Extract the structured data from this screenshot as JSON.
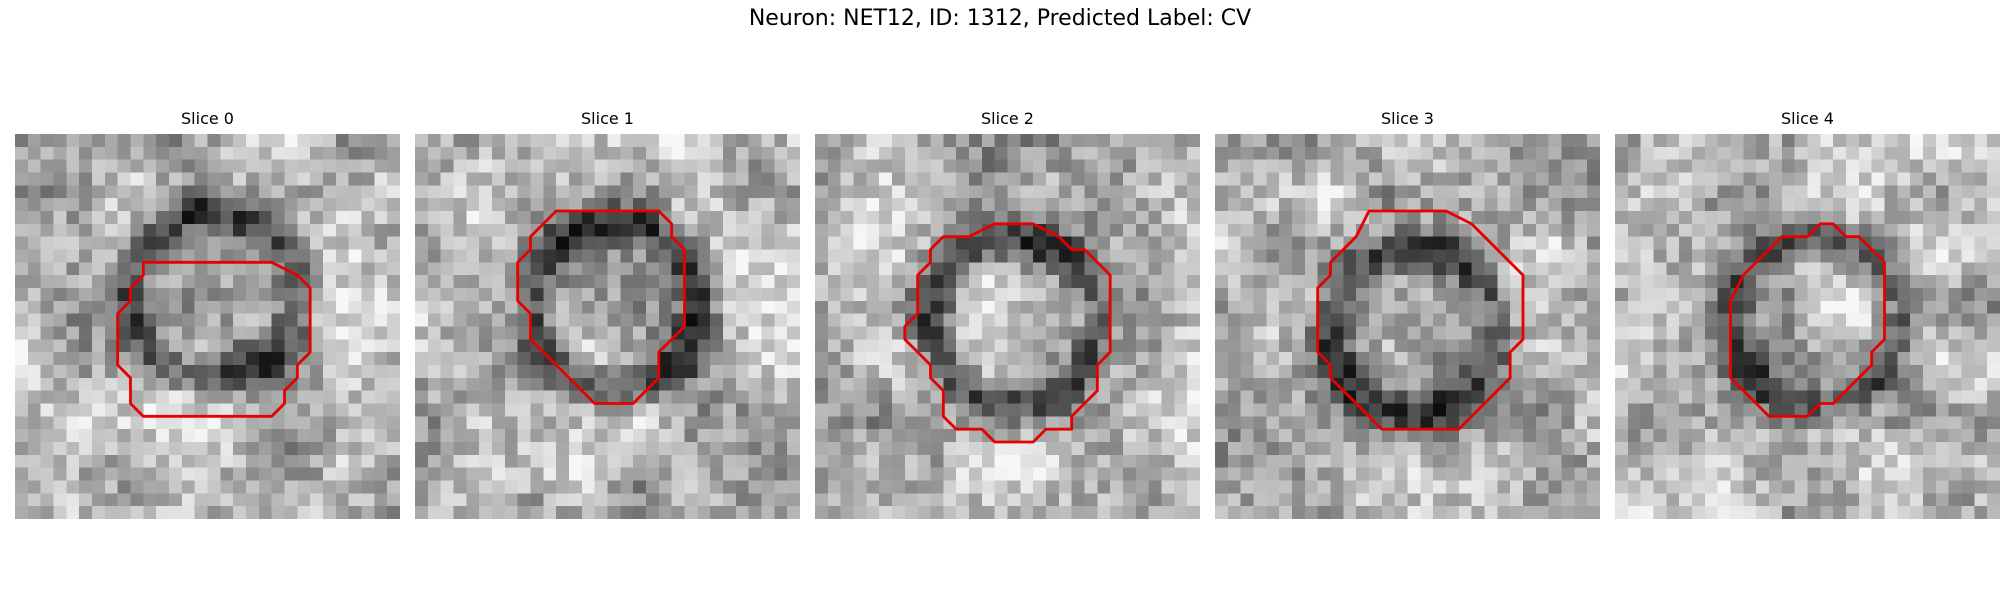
{
  "figure": {
    "title": "Neuron: NET12, ID: 1312, Predicted Label: CV"
  },
  "contour_color": "#e60000",
  "grid_size": 30,
  "slices": [
    {
      "title": "Slice 0",
      "seed": 11,
      "dark_center": [
        15,
        12
      ],
      "contour": [
        [
          10,
          10
        ],
        [
          20,
          10
        ],
        [
          22,
          11
        ],
        [
          23,
          12
        ],
        [
          23,
          17
        ],
        [
          22,
          18
        ],
        [
          22,
          19
        ],
        [
          21,
          20
        ],
        [
          21,
          21
        ],
        [
          20,
          22
        ],
        [
          10,
          22
        ],
        [
          9,
          21
        ],
        [
          9,
          19
        ],
        [
          8,
          18
        ],
        [
          8,
          14
        ],
        [
          9,
          13
        ],
        [
          9,
          12
        ],
        [
          10,
          11
        ]
      ]
    },
    {
      "title": "Slice 1",
      "seed": 23,
      "dark_center": [
        15,
        13
      ],
      "contour": [
        [
          11,
          6
        ],
        [
          19,
          6
        ],
        [
          20,
          7
        ],
        [
          20,
          8
        ],
        [
          21,
          9
        ],
        [
          21,
          15
        ],
        [
          20,
          16
        ],
        [
          19,
          17
        ],
        [
          19,
          19
        ],
        [
          17,
          21
        ],
        [
          14,
          21
        ],
        [
          13,
          20
        ],
        [
          10,
          17
        ],
        [
          9,
          16
        ],
        [
          9,
          14
        ],
        [
          8,
          13
        ],
        [
          8,
          10
        ],
        [
          9,
          9
        ],
        [
          9,
          8
        ],
        [
          10,
          7
        ]
      ]
    },
    {
      "title": "Slice 2",
      "seed": 37,
      "dark_center": [
        15,
        14
      ],
      "contour": [
        [
          10,
          8
        ],
        [
          12,
          8
        ],
        [
          14,
          7
        ],
        [
          17,
          7
        ],
        [
          19,
          8
        ],
        [
          20,
          9
        ],
        [
          21,
          9
        ],
        [
          23,
          11
        ],
        [
          23,
          17
        ],
        [
          22,
          18
        ],
        [
          22,
          20
        ],
        [
          21,
          21
        ],
        [
          20,
          22
        ],
        [
          20,
          23
        ],
        [
          18,
          23
        ],
        [
          17,
          24
        ],
        [
          14,
          24
        ],
        [
          13,
          23
        ],
        [
          11,
          23
        ],
        [
          10,
          22
        ],
        [
          10,
          20
        ],
        [
          9,
          19
        ],
        [
          9,
          18
        ],
        [
          8,
          17
        ],
        [
          7,
          16
        ],
        [
          7,
          15
        ],
        [
          8,
          14
        ],
        [
          8,
          11
        ],
        [
          9,
          10
        ],
        [
          9,
          9
        ]
      ]
    },
    {
      "title": "Slice 3",
      "seed": 53,
      "dark_center": [
        15,
        15
      ],
      "contour": [
        [
          12,
          6
        ],
        [
          18,
          6
        ],
        [
          20,
          7
        ],
        [
          22,
          9
        ],
        [
          23,
          10
        ],
        [
          24,
          11
        ],
        [
          24,
          16
        ],
        [
          23,
          17
        ],
        [
          23,
          19
        ],
        [
          19,
          23
        ],
        [
          13,
          23
        ],
        [
          10,
          20
        ],
        [
          9,
          19
        ],
        [
          9,
          18
        ],
        [
          8,
          17
        ],
        [
          8,
          12
        ],
        [
          9,
          11
        ],
        [
          9,
          10
        ],
        [
          10,
          9
        ],
        [
          11,
          8
        ]
      ]
    },
    {
      "title": "Slice 4",
      "seed": 71,
      "dark_center": [
        15,
        14
      ],
      "contour": [
        [
          13,
          8
        ],
        [
          15,
          8
        ],
        [
          16,
          7
        ],
        [
          17,
          7
        ],
        [
          18,
          8
        ],
        [
          19,
          8
        ],
        [
          21,
          10
        ],
        [
          21,
          11
        ],
        [
          21,
          12
        ],
        [
          21,
          16
        ],
        [
          20,
          17
        ],
        [
          20,
          18
        ],
        [
          19,
          19
        ],
        [
          18,
          20
        ],
        [
          17,
          21
        ],
        [
          16,
          21
        ],
        [
          15,
          22
        ],
        [
          12,
          22
        ],
        [
          11,
          21
        ],
        [
          10,
          20
        ],
        [
          9,
          19
        ],
        [
          9,
          13
        ],
        [
          10,
          11
        ],
        [
          12,
          9
        ]
      ]
    }
  ]
}
